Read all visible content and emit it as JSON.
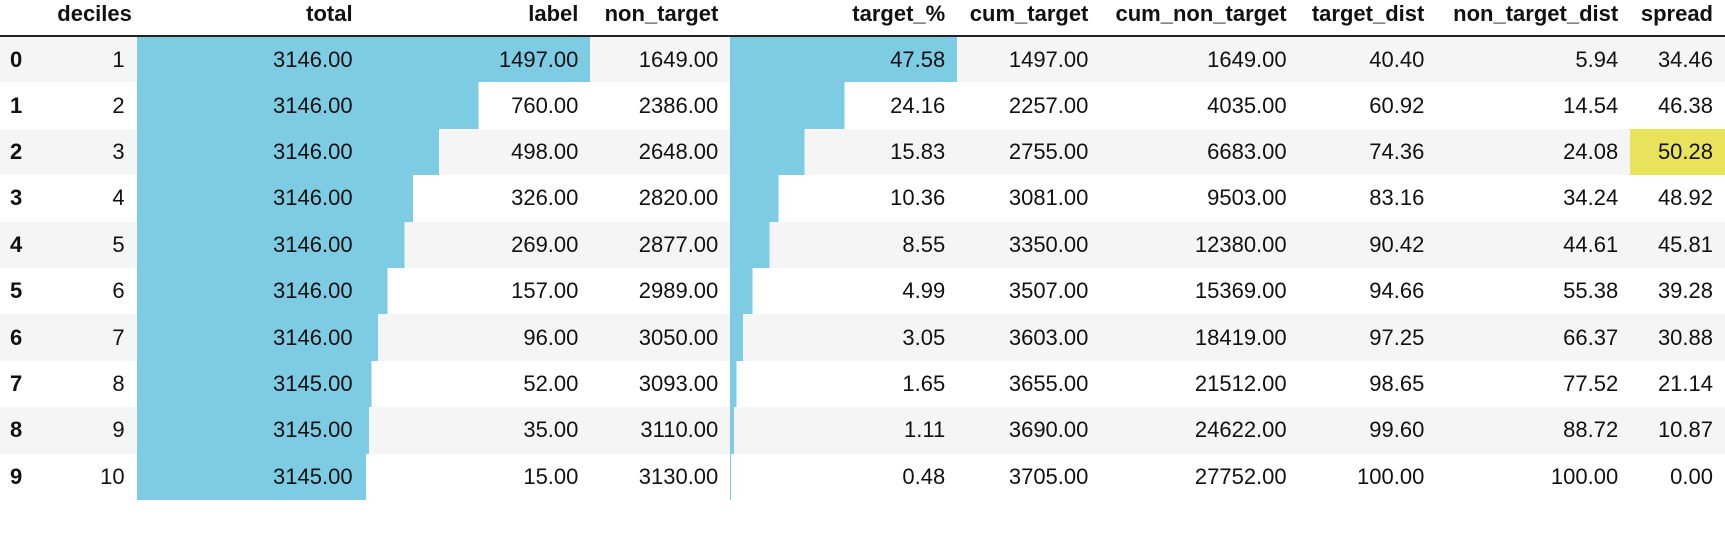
{
  "styles": {
    "bar_color": "#7ecce3",
    "highlight_color": "#e8e35a"
  },
  "table": {
    "columns": [
      "",
      "deciles",
      "total",
      "label",
      "non_target",
      "target_%",
      "cum_target",
      "cum_non_target",
      "target_dist",
      "non_target_dist",
      "spread"
    ],
    "bar_columns": [
      "total",
      "label",
      "target_%"
    ],
    "highlight_max_column": "spread",
    "rows": [
      {
        "index": "0",
        "deciles": "1",
        "total": "3146.00",
        "label": "1497.00",
        "non_target": "1649.00",
        "target_%": "47.58",
        "cum_target": "1497.00",
        "cum_non_target": "1649.00",
        "target_dist": "40.40",
        "non_target_dist": "5.94",
        "spread": "34.46"
      },
      {
        "index": "1",
        "deciles": "2",
        "total": "3146.00",
        "label": "760.00",
        "non_target": "2386.00",
        "target_%": "24.16",
        "cum_target": "2257.00",
        "cum_non_target": "4035.00",
        "target_dist": "60.92",
        "non_target_dist": "14.54",
        "spread": "46.38"
      },
      {
        "index": "2",
        "deciles": "3",
        "total": "3146.00",
        "label": "498.00",
        "non_target": "2648.00",
        "target_%": "15.83",
        "cum_target": "2755.00",
        "cum_non_target": "6683.00",
        "target_dist": "74.36",
        "non_target_dist": "24.08",
        "spread": "50.28"
      },
      {
        "index": "3",
        "deciles": "4",
        "total": "3146.00",
        "label": "326.00",
        "non_target": "2820.00",
        "target_%": "10.36",
        "cum_target": "3081.00",
        "cum_non_target": "9503.00",
        "target_dist": "83.16",
        "non_target_dist": "34.24",
        "spread": "48.92"
      },
      {
        "index": "4",
        "deciles": "5",
        "total": "3146.00",
        "label": "269.00",
        "non_target": "2877.00",
        "target_%": "8.55",
        "cum_target": "3350.00",
        "cum_non_target": "12380.00",
        "target_dist": "90.42",
        "non_target_dist": "44.61",
        "spread": "45.81"
      },
      {
        "index": "5",
        "deciles": "6",
        "total": "3146.00",
        "label": "157.00",
        "non_target": "2989.00",
        "target_%": "4.99",
        "cum_target": "3507.00",
        "cum_non_target": "15369.00",
        "target_dist": "94.66",
        "non_target_dist": "55.38",
        "spread": "39.28"
      },
      {
        "index": "6",
        "deciles": "7",
        "total": "3146.00",
        "label": "96.00",
        "non_target": "3050.00",
        "target_%": "3.05",
        "cum_target": "3603.00",
        "cum_non_target": "18419.00",
        "target_dist": "97.25",
        "non_target_dist": "66.37",
        "spread": "30.88"
      },
      {
        "index": "7",
        "deciles": "8",
        "total": "3145.00",
        "label": "52.00",
        "non_target": "3093.00",
        "target_%": "1.65",
        "cum_target": "3655.00",
        "cum_non_target": "21512.00",
        "target_dist": "98.65",
        "non_target_dist": "77.52",
        "spread": "21.14"
      },
      {
        "index": "8",
        "deciles": "9",
        "total": "3145.00",
        "label": "35.00",
        "non_target": "3110.00",
        "target_%": "1.11",
        "cum_target": "3690.00",
        "cum_non_target": "24622.00",
        "target_dist": "99.60",
        "non_target_dist": "88.72",
        "spread": "10.87"
      },
      {
        "index": "9",
        "deciles": "10",
        "total": "3145.00",
        "label": "15.00",
        "non_target": "3130.00",
        "target_%": "0.48",
        "cum_target": "3705.00",
        "cum_non_target": "27752.00",
        "target_dist": "100.00",
        "non_target_dist": "100.00",
        "spread": "0.00"
      }
    ]
  }
}
